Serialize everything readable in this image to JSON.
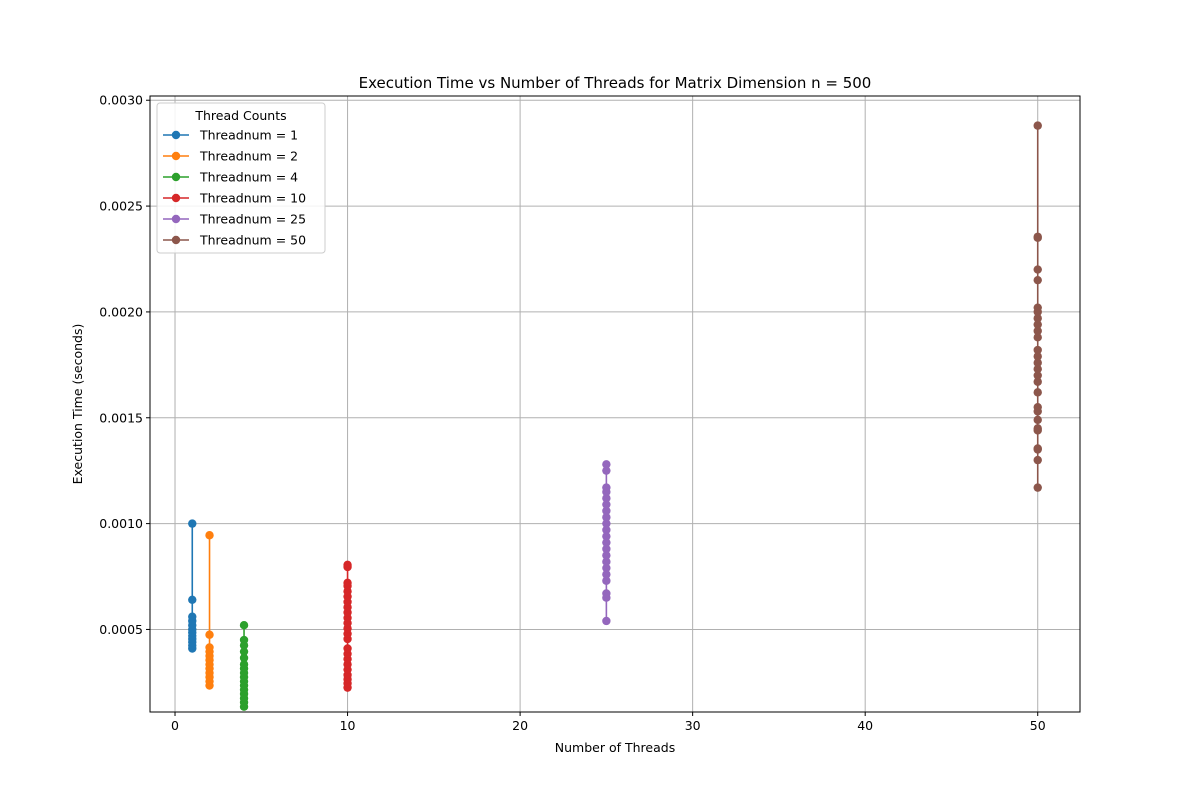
{
  "chart_data": {
    "type": "line",
    "title": "Execution Time vs Number of Threads for Matrix Dimension n = 500",
    "xlabel": "Number of Threads",
    "ylabel": "Execution Time (seconds)",
    "xlim": [
      -1.45,
      52.45
    ],
    "ylim": [
      0.00011,
      0.00302
    ],
    "xticks": [
      0,
      10,
      20,
      30,
      40,
      50
    ],
    "xtick_labels": [
      "0",
      "10",
      "20",
      "30",
      "40",
      "50"
    ],
    "yticks": [
      0.0005,
      0.001,
      0.0015,
      0.002,
      0.0025,
      0.003
    ],
    "ytick_labels": [
      "0.0005",
      "0.0010",
      "0.0015",
      "0.0020",
      "0.0025",
      "0.0030"
    ],
    "grid": true,
    "legend": {
      "title": "Thread Counts",
      "placement": "top-left"
    },
    "series": [
      {
        "name": "Threadnum = 1",
        "color": "#1f77b4",
        "x": 1,
        "values": [
          0.00041,
          0.000425,
          0.00044,
          0.000455,
          0.00047,
          0.000485,
          0.0005,
          0.00052,
          0.00054,
          0.00056,
          0.00064,
          0.001
        ]
      },
      {
        "name": "Threadnum = 2",
        "color": "#ff7f0e",
        "x": 2,
        "values": [
          0.000235,
          0.000255,
          0.000275,
          0.000295,
          0.000315,
          0.000335,
          0.000355,
          0.000375,
          0.000395,
          0.000415,
          0.000475,
          0.000945
        ]
      },
      {
        "name": "Threadnum = 4",
        "color": "#2ca02c",
        "x": 4,
        "values": [
          0.000135,
          0.000155,
          0.000175,
          0.000195,
          0.000215,
          0.000235,
          0.000255,
          0.000275,
          0.000295,
          0.000315,
          0.000335,
          0.000365,
          0.000395,
          0.000425,
          0.00045,
          0.00052
        ]
      },
      {
        "name": "Threadnum = 10",
        "color": "#d62728",
        "x": 10,
        "values": [
          0.000225,
          0.000245,
          0.000265,
          0.000285,
          0.00031,
          0.000335,
          0.00036,
          0.000385,
          0.00041,
          0.000455,
          0.00048,
          0.000505,
          0.00053,
          0.000555,
          0.00058,
          0.000605,
          0.00063,
          0.000655,
          0.00068,
          0.000705,
          0.00072,
          0.000795,
          0.000805
        ]
      },
      {
        "name": "Threadnum = 25",
        "color": "#9467bd",
        "x": 25,
        "values": [
          0.00054,
          0.00065,
          0.00067,
          0.00073,
          0.00076,
          0.00079,
          0.00082,
          0.00085,
          0.00088,
          0.00091,
          0.00094,
          0.00097,
          0.001,
          0.00103,
          0.00106,
          0.00109,
          0.00112,
          0.00115,
          0.00117,
          0.00125,
          0.00128
        ]
      },
      {
        "name": "Threadnum = 50",
        "color": "#8c564b",
        "x": 50,
        "values": [
          0.00117,
          0.0013,
          0.00135,
          0.001355,
          0.00144,
          0.00145,
          0.00149,
          0.00153,
          0.00155,
          0.00162,
          0.00167,
          0.0017,
          0.00173,
          0.00176,
          0.00179,
          0.00182,
          0.00188,
          0.00191,
          0.00194,
          0.00197,
          0.002,
          0.00202,
          0.00215,
          0.0022,
          0.00235,
          0.002355,
          0.00288
        ]
      }
    ]
  }
}
